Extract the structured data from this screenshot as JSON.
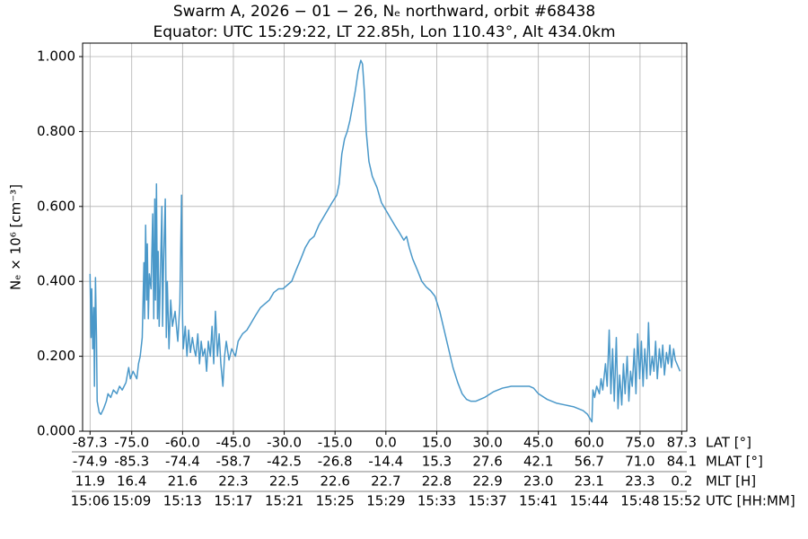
{
  "chart_data": {
    "type": "line",
    "title": "Swarm A,  2026 − 01 − 26,  Nₑ northward,  orbit #68438",
    "subtitle": "Equator:  UTC 15:29:22,  LT 22.85h,  Lon 110.43°,  Alt 434.0km",
    "ylabel": "Nₑ × 10⁶ [cm⁻³]",
    "xlabel": "LAT [°]",
    "color": "#4a98c9",
    "grid": true,
    "xlim": [
      -89.5,
      88.8
    ],
    "ylim": [
      0,
      1.036
    ],
    "xticks": [
      -87.3,
      {
        "value": -75,
        "label": "-75.0"
      },
      {
        "value": -60,
        "label": "-60.0"
      },
      {
        "value": -45,
        "label": "-45.0"
      },
      {
        "value": -30,
        "label": "-30.0"
      },
      {
        "value": -15,
        "label": "-15.0"
      },
      {
        "value": 0,
        "label": "0.0"
      },
      {
        "value": 15,
        "label": "15.0"
      },
      {
        "value": 30,
        "label": "30.0"
      },
      {
        "value": 45,
        "label": "45.0"
      },
      {
        "value": 60,
        "label": "60.0"
      },
      {
        "value": 75,
        "label": "75.0"
      },
      87.3
    ],
    "yticks": [
      {
        "value": 0,
        "label": "0.000"
      },
      {
        "value": 0.2,
        "label": "0.200"
      },
      {
        "value": 0.4,
        "label": "0.400"
      },
      {
        "value": 0.6,
        "label": "0.600"
      },
      {
        "value": 0.8,
        "label": "0.800"
      },
      {
        "value": 1,
        "label": "1.000"
      }
    ],
    "x_rows": [
      {
        "label": "MLAT [°]",
        "ticks": [
          "-74.9",
          "-85.3",
          "-74.4",
          "-58.7",
          "-42.5",
          "-26.8",
          "-14.4",
          "15.3",
          "27.6",
          "42.1",
          "56.7",
          "71.0",
          "84.1"
        ]
      },
      {
        "label": "MLT [H]",
        "ticks": [
          "11.9",
          "16.4",
          "21.6",
          "22.3",
          "22.5",
          "22.6",
          "22.7",
          "22.8",
          "22.9",
          "23.0",
          "23.1",
          "23.3",
          "0.2"
        ]
      },
      {
        "label": "UTC [HH:MM]",
        "ticks": [
          "15:06",
          "15:09",
          "15:13",
          "15:17",
          "15:21",
          "15:25",
          "15:29",
          "15:33",
          "15:37",
          "15:41",
          "15:44",
          "15:48",
          "15:52"
        ]
      }
    ],
    "x": [
      -87.3,
      -87.0,
      -86.8,
      -86.5,
      -86.2,
      -86.0,
      -85.7,
      -85.4,
      -85.2,
      -84.6,
      -84.1,
      -83.3,
      -82.5,
      -82.0,
      -81.2,
      -80.4,
      -79.4,
      -78.6,
      -77.8,
      -76.7,
      -75.9,
      -75.4,
      -74.6,
      -73.5,
      -73.0,
      -72.5,
      -71.9,
      -71.4,
      -71.2,
      -70.9,
      -70.6,
      -70.4,
      -70.1,
      -69.8,
      -69.3,
      -68.8,
      -68.5,
      -68.2,
      -68.0,
      -67.7,
      -67.4,
      -67.2,
      -66.9,
      -66.7,
      -66.1,
      -65.9,
      -65.6,
      -65.1,
      -64.8,
      -64.5,
      -64.0,
      -63.5,
      -63.0,
      -62.2,
      -61.4,
      -60.8,
      -60.3,
      -60.0,
      -59.8,
      -59.2,
      -58.7,
      -58.2,
      -57.7,
      -57.1,
      -56.6,
      -56.1,
      -55.5,
      -55.0,
      -54.5,
      -54.0,
      -53.4,
      -52.9,
      -52.4,
      -51.8,
      -51.3,
      -50.8,
      -50.3,
      -49.7,
      -49.2,
      -48.7,
      -48.1,
      -47.6,
      -47.1,
      -46.3,
      -45.5,
      -44.4,
      -43.6,
      -42.3,
      -41.0,
      -39.7,
      -38.4,
      -37.0,
      -35.7,
      -34.4,
      -33.1,
      -31.7,
      -30.4,
      -29.1,
      -27.8,
      -26.5,
      -25.1,
      -23.8,
      -22.5,
      -21.2,
      -19.8,
      -18.5,
      -17.2,
      -15.9,
      -14.5,
      -13.8,
      -13.0,
      -12.2,
      -11.4,
      -10.6,
      -9.8,
      -9.0,
      -8.2,
      -7.4,
      -6.9,
      -6.3,
      -5.8,
      -5.0,
      -4.0,
      -2.6,
      -1.3,
      0,
      1.3,
      2.6,
      4.0,
      5.3,
      6.1,
      6.9,
      7.9,
      9.3,
      10.6,
      11.9,
      13.2,
      14.5,
      15.9,
      17.2,
      18.5,
      19.8,
      21.2,
      22.5,
      23.8,
      25.1,
      26.5,
      29.1,
      31.7,
      34.4,
      37.0,
      39.7,
      42.3,
      43.6,
      45.0,
      47.6,
      50.3,
      52.9,
      55.5,
      58.2,
      59.5,
      60.8,
      61.1,
      61.6,
      62.2,
      63.0,
      63.5,
      64.0,
      64.8,
      65.3,
      65.9,
      66.4,
      66.9,
      67.4,
      68.0,
      68.5,
      69.0,
      69.6,
      70.1,
      70.6,
      71.2,
      71.7,
      72.2,
      72.7,
      73.3,
      73.8,
      74.3,
      74.9,
      75.4,
      75.9,
      76.4,
      77.0,
      77.5,
      78.0,
      78.6,
      79.1,
      79.6,
      80.1,
      80.7,
      81.2,
      81.7,
      82.2,
      82.8,
      83.3,
      83.8,
      84.3,
      84.9,
      85.4,
      86.8
    ],
    "values": [
      0.42,
      0.25,
      0.38,
      0.22,
      0.33,
      0.12,
      0.41,
      0.25,
      0.08,
      0.05,
      0.045,
      0.06,
      0.08,
      0.1,
      0.09,
      0.11,
      0.1,
      0.12,
      0.11,
      0.13,
      0.17,
      0.14,
      0.16,
      0.14,
      0.18,
      0.2,
      0.25,
      0.45,
      0.3,
      0.55,
      0.35,
      0.5,
      0.3,
      0.42,
      0.38,
      0.58,
      0.3,
      0.62,
      0.35,
      0.66,
      0.3,
      0.48,
      0.28,
      0.35,
      0.6,
      0.28,
      0.45,
      0.62,
      0.25,
      0.4,
      0.22,
      0.35,
      0.28,
      0.32,
      0.24,
      0.34,
      0.63,
      0.3,
      0.22,
      0.28,
      0.2,
      0.27,
      0.21,
      0.25,
      0.22,
      0.2,
      0.26,
      0.18,
      0.24,
      0.2,
      0.22,
      0.16,
      0.24,
      0.2,
      0.28,
      0.18,
      0.32,
      0.2,
      0.26,
      0.18,
      0.12,
      0.2,
      0.24,
      0.19,
      0.22,
      0.2,
      0.24,
      0.26,
      0.27,
      0.29,
      0.31,
      0.33,
      0.34,
      0.35,
      0.37,
      0.38,
      0.38,
      0.39,
      0.4,
      0.43,
      0.46,
      0.49,
      0.51,
      0.52,
      0.55,
      0.57,
      0.59,
      0.61,
      0.63,
      0.66,
      0.74,
      0.78,
      0.8,
      0.83,
      0.87,
      0.91,
      0.96,
      0.99,
      0.98,
      0.9,
      0.8,
      0.72,
      0.68,
      0.65,
      0.61,
      0.59,
      0.57,
      0.55,
      0.53,
      0.51,
      0.52,
      0.49,
      0.46,
      0.43,
      0.4,
      0.385,
      0.375,
      0.36,
      0.32,
      0.27,
      0.22,
      0.17,
      0.13,
      0.1,
      0.085,
      0.08,
      0.08,
      0.09,
      0.105,
      0.115,
      0.12,
      0.12,
      0.12,
      0.115,
      0.1,
      0.085,
      0.075,
      0.07,
      0.065,
      0.055,
      0.045,
      0.025,
      0.11,
      0.09,
      0.12,
      0.1,
      0.14,
      0.11,
      0.18,
      0.12,
      0.27,
      0.1,
      0.22,
      0.08,
      0.25,
      0.06,
      0.15,
      0.07,
      0.18,
      0.1,
      0.2,
      0.08,
      0.16,
      0.12,
      0.22,
      0.1,
      0.26,
      0.14,
      0.24,
      0.12,
      0.22,
      0.14,
      0.29,
      0.15,
      0.2,
      0.16,
      0.24,
      0.14,
      0.22,
      0.17,
      0.23,
      0.15,
      0.21,
      0.18,
      0.23,
      0.17,
      0.22,
      0.19,
      0.16
    ]
  }
}
